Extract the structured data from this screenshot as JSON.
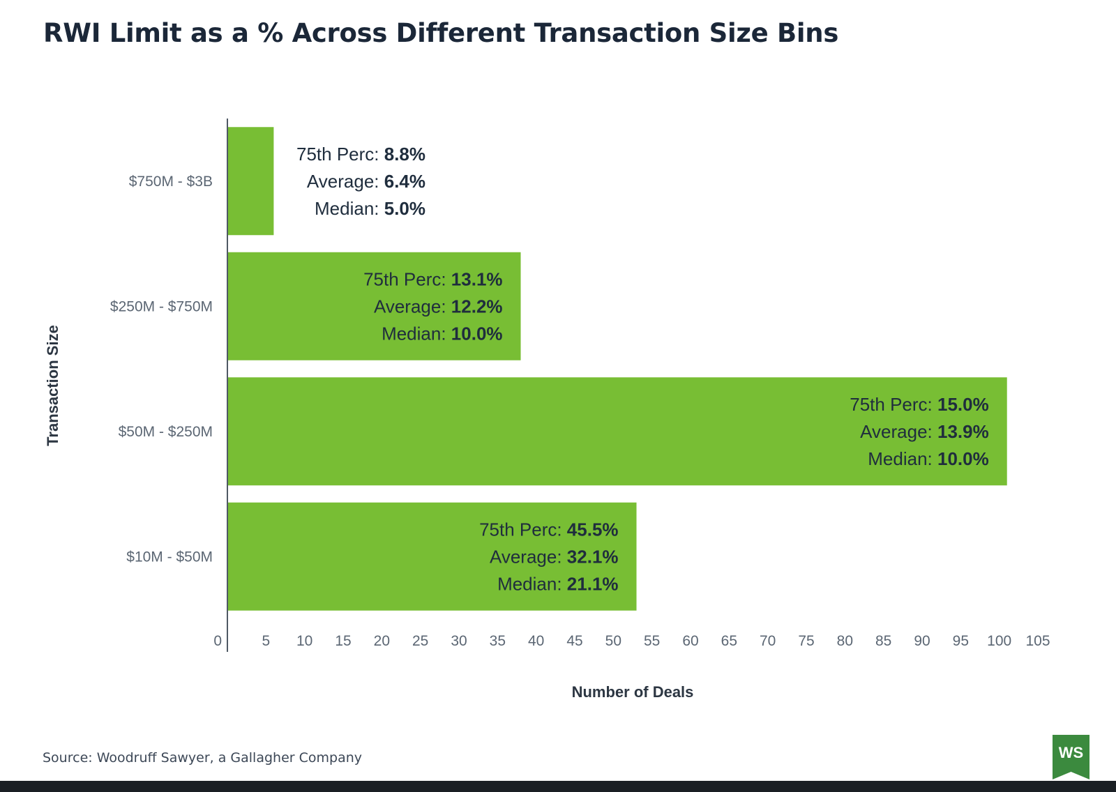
{
  "title": "RWI Limit as a % Across Different Transaction Size Bins",
  "source": "Source: Woodruff Sawyer, a Gallagher Company",
  "logo_text": "WS",
  "colors": {
    "bar": "#78be34",
    "axis": "#4f5964",
    "tick_text": "#5b6673",
    "label_text": "#1f2d3d",
    "logo_green": "#3b8a3e"
  },
  "chart_data": {
    "type": "bar",
    "orientation": "horizontal",
    "title": "RWI Limit as a % Across Different Transaction Size Bins",
    "xlabel": "Number of Deals",
    "ylabel": "Transaction Size",
    "xlim": [
      0,
      105
    ],
    "xticks": [
      0,
      5,
      10,
      15,
      20,
      25,
      30,
      35,
      40,
      45,
      50,
      55,
      60,
      65,
      70,
      75,
      80,
      85,
      90,
      95,
      100,
      105
    ],
    "categories": [
      "$750M - $3B",
      "$250M - $750M",
      "$50M - $250M",
      "$10M - $50M"
    ],
    "values": [
      6,
      38,
      101,
      53
    ],
    "annotations": [
      {
        "perc75_label": "75th Perc:",
        "perc75": "8.8%",
        "average_label": "Average:",
        "average": "6.4%",
        "median_label": "Median:",
        "median": "5.0%"
      },
      {
        "perc75_label": "75th Perc:",
        "perc75": "13.1%",
        "average_label": "Average:",
        "average": "12.2%",
        "median_label": "Median:",
        "median": "10.0%"
      },
      {
        "perc75_label": "75th Perc:",
        "perc75": "15.0%",
        "average_label": "Average:",
        "average": "13.9%",
        "median_label": "Median:",
        "median": "10.0%"
      },
      {
        "perc75_label": "75th Perc:",
        "perc75": "45.5%",
        "average_label": "Average:",
        "average": "32.1%",
        "median_label": "Median:",
        "median": "21.1%"
      }
    ]
  }
}
